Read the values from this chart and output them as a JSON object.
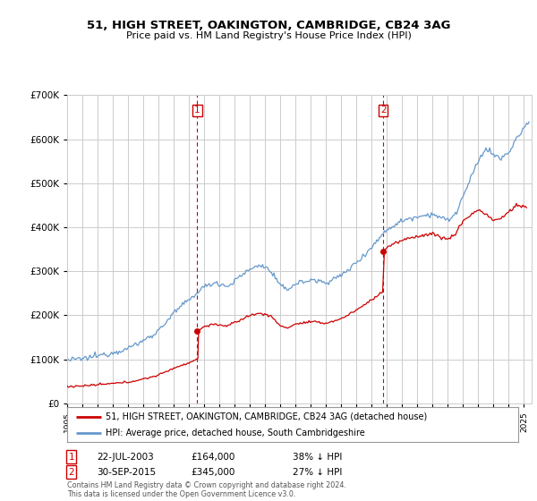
{
  "title": "51, HIGH STREET, OAKINGTON, CAMBRIDGE, CB24 3AG",
  "subtitle": "Price paid vs. HM Land Registry's House Price Index (HPI)",
  "property_label": "51, HIGH STREET, OAKINGTON, CAMBRIDGE, CB24 3AG (detached house)",
  "hpi_label": "HPI: Average price, detached house, South Cambridgeshire",
  "sale1_date": "22-JUL-2003",
  "sale1_price": 164000,
  "sale1_pct": "38% ↓ HPI",
  "sale1_year": 2003.55,
  "sale2_date": "30-SEP-2015",
  "sale2_price": 345000,
  "sale2_pct": "27% ↓ HPI",
  "sale2_year": 2015.75,
  "footer": "Contains HM Land Registry data © Crown copyright and database right 2024.\nThis data is licensed under the Open Government Licence v3.0.",
  "property_color": "#cc0000",
  "hpi_color": "#6699cc",
  "vline_color": "#cc0000",
  "background_color": "#ffffff",
  "grid_color": "#cccccc",
  "ylim": [
    0,
    700000
  ],
  "yticks": [
    0,
    100000,
    200000,
    300000,
    400000,
    500000,
    600000,
    700000
  ],
  "xlim_start": 1995.0,
  "xlim_end": 2025.5,
  "hpi_key_points": [
    [
      1995.0,
      98000
    ],
    [
      1996.0,
      101000
    ],
    [
      1997.0,
      108000
    ],
    [
      1998.0,
      115000
    ],
    [
      1999.0,
      125000
    ],
    [
      2000.0,
      142000
    ],
    [
      2001.0,
      165000
    ],
    [
      2002.0,
      205000
    ],
    [
      2003.0,
      235000
    ],
    [
      2004.0,
      265000
    ],
    [
      2004.8,
      275000
    ],
    [
      2005.5,
      265000
    ],
    [
      2006.0,
      278000
    ],
    [
      2007.0,
      305000
    ],
    [
      2007.8,
      315000
    ],
    [
      2008.5,
      295000
    ],
    [
      2009.0,
      265000
    ],
    [
      2009.5,
      260000
    ],
    [
      2010.0,
      272000
    ],
    [
      2011.0,
      280000
    ],
    [
      2012.0,
      275000
    ],
    [
      2013.0,
      290000
    ],
    [
      2014.0,
      320000
    ],
    [
      2015.0,
      355000
    ],
    [
      2016.0,
      395000
    ],
    [
      2017.0,
      415000
    ],
    [
      2018.0,
      425000
    ],
    [
      2019.0,
      430000
    ],
    [
      2020.0,
      415000
    ],
    [
      2020.5,
      430000
    ],
    [
      2021.0,
      470000
    ],
    [
      2022.0,
      550000
    ],
    [
      2022.5,
      580000
    ],
    [
      2023.0,
      565000
    ],
    [
      2023.5,
      555000
    ],
    [
      2024.0,
      570000
    ],
    [
      2024.5,
      600000
    ],
    [
      2025.3,
      640000
    ]
  ],
  "prop_key_points_pre": [
    [
      1995.0,
      38000
    ],
    [
      1996.0,
      39500
    ],
    [
      1997.0,
      42000
    ],
    [
      1998.0,
      45000
    ],
    [
      1999.0,
      48000
    ],
    [
      2000.0,
      55000
    ],
    [
      2001.0,
      64000
    ],
    [
      2002.0,
      80000
    ],
    [
      2003.0,
      92000
    ],
    [
      2003.55,
      101000
    ]
  ],
  "prop_key_points_mid": [
    [
      2003.55,
      164000
    ],
    [
      2004.0,
      175000
    ],
    [
      2004.8,
      180000
    ],
    [
      2005.5,
      175000
    ],
    [
      2006.0,
      183000
    ],
    [
      2007.0,
      200000
    ],
    [
      2007.8,
      205000
    ],
    [
      2008.5,
      195000
    ],
    [
      2009.0,
      175000
    ],
    [
      2009.5,
      172000
    ],
    [
      2010.0,
      180000
    ],
    [
      2011.0,
      185000
    ],
    [
      2012.0,
      182000
    ],
    [
      2013.0,
      192000
    ],
    [
      2014.0,
      212000
    ],
    [
      2015.0,
      235000
    ],
    [
      2015.75,
      255000
    ]
  ],
  "prop_key_points_post": [
    [
      2015.75,
      345000
    ],
    [
      2016.0,
      355000
    ],
    [
      2017.0,
      370000
    ],
    [
      2018.0,
      380000
    ],
    [
      2019.0,
      385000
    ],
    [
      2020.0,
      372000
    ],
    [
      2020.5,
      385000
    ],
    [
      2021.0,
      415000
    ],
    [
      2022.0,
      440000
    ],
    [
      2022.5,
      430000
    ],
    [
      2023.0,
      415000
    ],
    [
      2023.5,
      420000
    ],
    [
      2024.0,
      435000
    ],
    [
      2024.5,
      450000
    ],
    [
      2025.2,
      445000
    ]
  ]
}
